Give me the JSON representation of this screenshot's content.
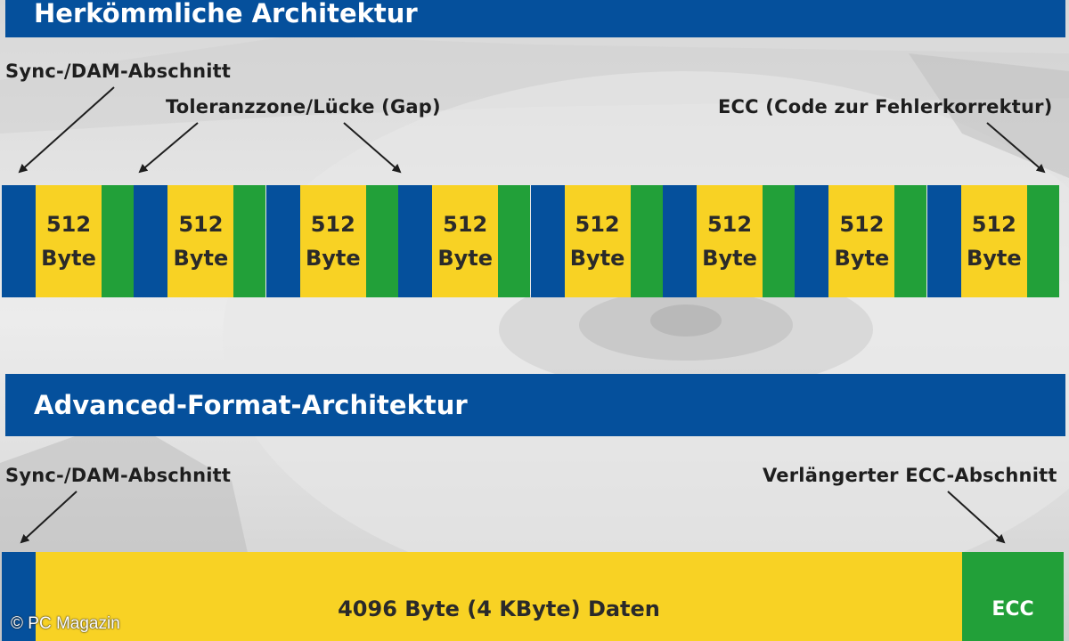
{
  "top_section": {
    "title": "Herkömmliche Architektur",
    "labels": {
      "sync": "Sync-/DAM-Abschnitt",
      "gap": "Toleranzzone/Lücke (Gap)",
      "ecc": "ECC (Code zur Fehlerkorrektur)"
    },
    "sector_text": "512\nByte",
    "sector_count": 8
  },
  "bottom_section": {
    "title": "Advanced-Format-Architektur",
    "labels": {
      "sync": "Sync-/DAM-Abschnitt",
      "ecc": "Verlängerter ECC-Abschnitt"
    },
    "data_text": "4096 Byte (4 KByte) Daten",
    "ecc_text": "ECC"
  },
  "colors": {
    "banner": "#05509c",
    "sync": "#05509c",
    "data": "#f8d224",
    "ecc": "#22a039"
  },
  "copyright": "© PC Magazin"
}
